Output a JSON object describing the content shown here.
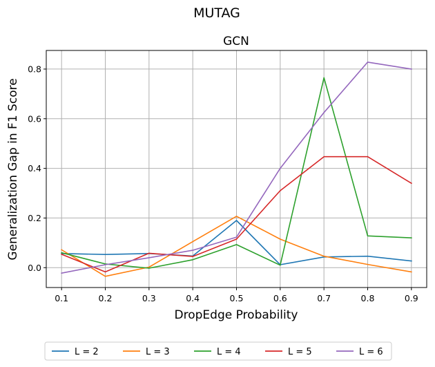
{
  "figure": {
    "suptitle": "MUTAG"
  },
  "chart_data": {
    "type": "line",
    "title": "GCN",
    "xlabel": "DropEdge Probability",
    "ylabel": "Generalization Gap in F1 Score",
    "x": [
      0.1,
      0.2,
      0.3,
      0.4,
      0.5,
      0.6,
      0.7,
      0.8,
      0.9
    ],
    "xticks": [
      "0.1",
      "0.2",
      "0.3",
      "0.4",
      "0.5",
      "0.6",
      "0.7",
      "0.8",
      "0.9"
    ],
    "yticks": [
      "0.0",
      "0.2",
      "0.4",
      "0.6",
      "0.8"
    ],
    "xlim": [
      0.065,
      0.935
    ],
    "ylim": [
      -0.08,
      0.875
    ],
    "grid": true,
    "legend_position": "bottom-center",
    "series": [
      {
        "name": "L = 2",
        "color": "#1f77b4",
        "values": [
          0.057,
          0.053,
          0.057,
          0.047,
          0.19,
          0.012,
          0.043,
          0.046,
          0.027
        ]
      },
      {
        "name": "L = 3",
        "color": "#ff7f0e",
        "values": [
          0.072,
          -0.035,
          0.002,
          0.105,
          0.207,
          0.115,
          0.046,
          0.013,
          -0.017
        ]
      },
      {
        "name": "L = 4",
        "color": "#2ca02c",
        "values": [
          0.06,
          0.015,
          -0.002,
          0.032,
          0.093,
          0.01,
          0.765,
          0.128,
          0.12
        ]
      },
      {
        "name": "L = 5",
        "color": "#d62728",
        "values": [
          0.054,
          -0.017,
          0.058,
          0.045,
          0.115,
          0.31,
          0.447,
          0.447,
          0.34
        ]
      },
      {
        "name": "L = 6",
        "color": "#9467bd",
        "values": [
          -0.022,
          0.012,
          0.04,
          0.07,
          0.123,
          0.4,
          0.625,
          0.828,
          0.8
        ]
      }
    ]
  }
}
